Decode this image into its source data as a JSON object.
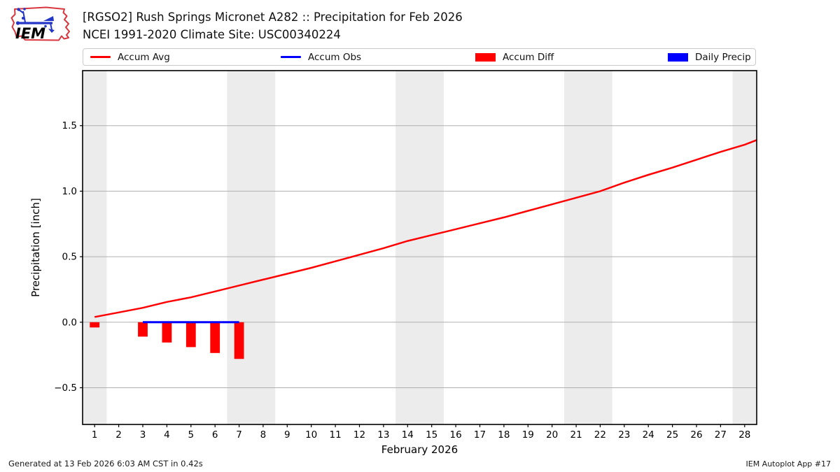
{
  "header": {
    "logo_text": "IEM",
    "title_line1": "[RGSO2] Rush Springs Micronet A282 :: Precipitation for Feb 2026",
    "title_line2": "NCEI 1991-2020 Climate Site: USC00340224"
  },
  "legend": {
    "items": [
      {
        "label": "Accum Avg",
        "swatch": "line",
        "color": "#ff0000"
      },
      {
        "label": "Accum Obs",
        "swatch": "line",
        "color": "#0000ff"
      },
      {
        "label": "Accum Diff",
        "swatch": "rect",
        "color": "#ff0000"
      },
      {
        "label": "Daily Precip",
        "swatch": "rect",
        "color": "#0000ff"
      }
    ]
  },
  "footer": {
    "generated": "Generated at 13 Feb 2026 6:03 AM CST in 0.42s",
    "credit": "IEM Autoplot App #17"
  },
  "chart_data": {
    "type": "line+bar",
    "xlabel": "February 2026",
    "ylabel": "Precipitation [inch]",
    "xlim": [
      0.5,
      28.5
    ],
    "ylim": [
      -0.78,
      1.92
    ],
    "x_ticks": [
      1,
      2,
      3,
      4,
      5,
      6,
      7,
      8,
      9,
      10,
      11,
      12,
      13,
      14,
      15,
      16,
      17,
      18,
      19,
      20,
      21,
      22,
      23,
      24,
      25,
      26,
      27,
      28
    ],
    "y_ticks": [
      {
        "value": -0.5,
        "label": "−0.5"
      },
      {
        "value": 0.0,
        "label": "0.0"
      },
      {
        "value": 0.5,
        "label": "0.5"
      },
      {
        "value": 1.0,
        "label": "1.0"
      },
      {
        "value": 1.5,
        "label": "1.5"
      }
    ],
    "grid": true,
    "legend_position": "top",
    "weekend_bands": [
      [
        0.5,
        1.5
      ],
      [
        6.5,
        8.5
      ],
      [
        13.5,
        15.5
      ],
      [
        20.5,
        22.5
      ],
      [
        27.5,
        28.5
      ]
    ],
    "colors": {
      "band": "#ececec",
      "grid": "#b0b0b0",
      "frame": "#000000",
      "accum_avg": "#ff0000",
      "accum_obs": "#0000ff",
      "accum_diff": "#ff0000",
      "daily_precip": "#0000ff"
    },
    "series": [
      {
        "name": "Accum Avg",
        "type": "line",
        "color": "#ff0000",
        "width": 2.5,
        "x": [
          1,
          2,
          3,
          4,
          5,
          6,
          7,
          8,
          9,
          10,
          11,
          12,
          13,
          14,
          15,
          16,
          17,
          18,
          19,
          20,
          21,
          22,
          23,
          24,
          25,
          26,
          27,
          28,
          28.5
        ],
        "y": [
          0.04,
          0.075,
          0.11,
          0.155,
          0.19,
          0.235,
          0.28,
          0.325,
          0.37,
          0.415,
          0.465,
          0.515,
          0.565,
          0.62,
          0.665,
          0.71,
          0.755,
          0.8,
          0.85,
          0.9,
          0.95,
          1.0,
          1.065,
          1.125,
          1.18,
          1.24,
          1.3,
          1.355,
          1.39
        ]
      },
      {
        "name": "Accum Obs",
        "type": "line",
        "color": "#0000ff",
        "width": 3,
        "x": [
          3,
          7
        ],
        "y": [
          0,
          0
        ]
      },
      {
        "name": "Accum Diff",
        "type": "bar",
        "color": "#ff0000",
        "bar_width": 0.4,
        "x": [
          1,
          3,
          4,
          5,
          6,
          7
        ],
        "y": [
          -0.04,
          -0.11,
          -0.155,
          -0.19,
          -0.235,
          -0.28
        ]
      },
      {
        "name": "Daily Precip",
        "type": "bar",
        "color": "#0000ff",
        "bar_width": 0.4,
        "x": [],
        "y": []
      }
    ]
  }
}
